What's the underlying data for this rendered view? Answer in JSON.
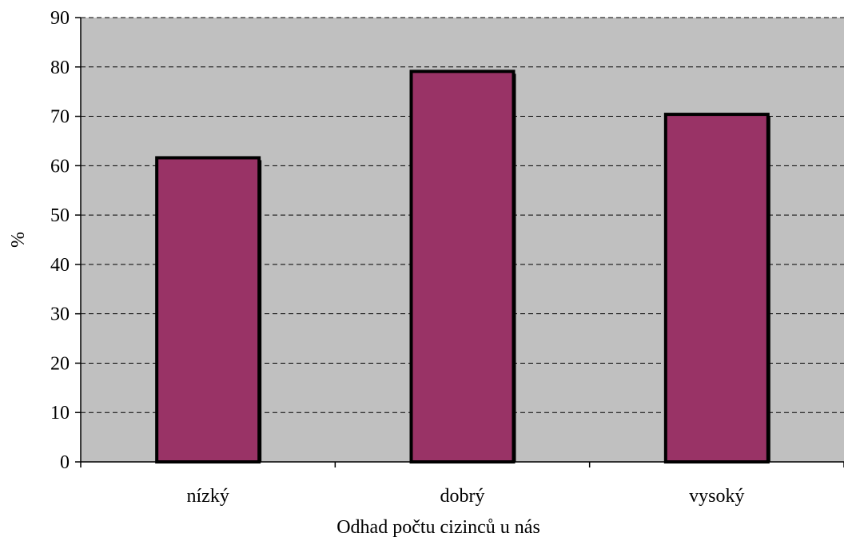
{
  "chart_data": {
    "type": "bar",
    "title": "",
    "xlabel": "Odhad počtu cizinců u nás",
    "ylabel": "%",
    "categories": [
      "nízký",
      "dobrý",
      "vysoký"
    ],
    "values": [
      61.6,
      79.1,
      70.4
    ],
    "ylim": [
      0,
      90
    ],
    "yticks": [
      0,
      10,
      20,
      30,
      40,
      50,
      60,
      70,
      80,
      90
    ],
    "grid": true,
    "legend": "none",
    "colors": {
      "bar": "#993366",
      "plot_background": "#c0c0c0",
      "bar_border": "#000000",
      "gridline": "#000000"
    }
  }
}
